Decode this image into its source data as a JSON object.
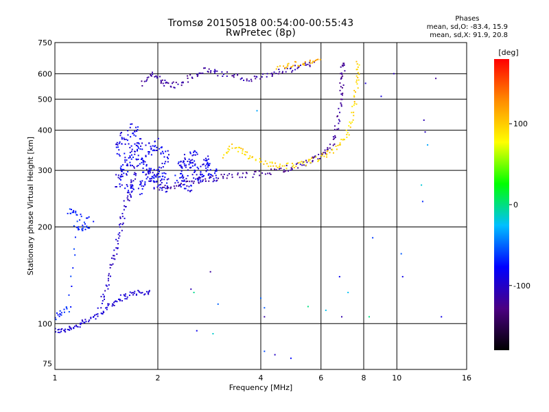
{
  "header": {
    "title_line1": "Tromsø 20150518 00:54:00-00:55:43",
    "title_line2": "RwPretec (8p)"
  },
  "stats": {
    "heading": "Phases",
    "line_o": "mean, sd,O: -83.4, 15.9",
    "line_x": "mean, sd,X:  91.9, 20.8"
  },
  "chart_data": {
    "type": "scatter",
    "xlabel": "Frequency [MHz]",
    "ylabel": "Stationary phase Virtual Height [km]",
    "xscale": "log",
    "yscale": "log",
    "xlim": [
      1,
      16
    ],
    "ylim": [
      72,
      750
    ],
    "x_ticks": [
      1,
      2,
      4,
      6,
      8,
      10,
      16
    ],
    "x_gridlines": [
      2,
      4,
      6,
      8,
      10
    ],
    "y_ticks": [
      75,
      100,
      200,
      300,
      400,
      500,
      600,
      750
    ],
    "y_gridlines": [
      100,
      200,
      300,
      400,
      500,
      600
    ],
    "colorbar": {
      "label": "[deg]",
      "min": -180,
      "max": 180,
      "ticks": [
        100,
        0,
        -100
      ],
      "stops": [
        "#000000",
        "#4b0082",
        "#0000ff",
        "#00bfff",
        "#00ff00",
        "#ffff00",
        "#ff8c00",
        "#ff0000"
      ]
    },
    "series": [
      {
        "tag": "low-o-trace",
        "phase": -95,
        "spread": 10,
        "points": [
          [
            1.0,
            95
          ],
          [
            1.05,
            95
          ],
          [
            1.1,
            97
          ],
          [
            1.15,
            98
          ],
          [
            1.2,
            100
          ],
          [
            1.27,
            103
          ],
          [
            1.35,
            107
          ],
          [
            1.42,
            112
          ],
          [
            1.48,
            116
          ],
          [
            1.55,
            120
          ],
          [
            1.62,
            122
          ],
          [
            1.72,
            125
          ],
          [
            1.82,
            124
          ],
          [
            1.9,
            126
          ]
        ]
      },
      {
        "tag": "low-o-rise",
        "phase": -100,
        "spread": 10,
        "points": [
          [
            1.35,
            112
          ],
          [
            1.4,
            125
          ],
          [
            1.45,
            140
          ],
          [
            1.48,
            160
          ],
          [
            1.52,
            175
          ],
          [
            1.55,
            195
          ],
          [
            1.58,
            215
          ],
          [
            1.62,
            240
          ],
          [
            1.66,
            260
          ],
          [
            1.7,
            285
          ],
          [
            1.72,
            310
          ]
        ]
      },
      {
        "tag": "low-cyan",
        "phase": -70,
        "spread": 12,
        "points": [
          [
            1.0,
            105
          ],
          [
            1.05,
            108
          ],
          [
            1.1,
            112
          ],
          [
            1.15,
            200
          ],
          [
            1.2,
            198
          ],
          [
            1.25,
            200
          ],
          [
            1.1,
            225
          ],
          [
            1.15,
            222
          ],
          [
            1.3,
            210
          ]
        ]
      },
      {
        "tag": "blob-1.5-2.1",
        "phase": -85,
        "spread": 15,
        "points": [
          [
            1.55,
            280
          ],
          [
            1.6,
            300
          ],
          [
            1.65,
            320
          ],
          [
            1.7,
            340
          ],
          [
            1.75,
            360
          ],
          [
            1.8,
            320
          ],
          [
            1.85,
            300
          ],
          [
            1.9,
            290
          ],
          [
            1.95,
            280
          ],
          [
            2.0,
            275
          ],
          [
            2.05,
            300
          ],
          [
            2.1,
            330
          ],
          [
            1.6,
            380
          ],
          [
            1.7,
            400
          ],
          [
            1.55,
            350
          ],
          [
            1.65,
            260
          ],
          [
            1.8,
            265
          ],
          [
            1.9,
            350
          ],
          [
            2.0,
            360
          ],
          [
            2.1,
            270
          ]
        ]
      },
      {
        "tag": "blob-2.3-2.9",
        "phase": -85,
        "spread": 15,
        "points": [
          [
            2.3,
            280
          ],
          [
            2.4,
            300
          ],
          [
            2.5,
            310
          ],
          [
            2.6,
            295
          ],
          [
            2.7,
            285
          ],
          [
            2.8,
            300
          ],
          [
            2.9,
            290
          ],
          [
            2.35,
            320
          ],
          [
            2.55,
            330
          ],
          [
            2.75,
            320
          ],
          [
            2.45,
            270
          ]
        ]
      },
      {
        "tag": "f-o-trace",
        "phase": -120,
        "spread": 10,
        "points": [
          [
            2.0,
            260
          ],
          [
            2.2,
            268
          ],
          [
            2.4,
            272
          ],
          [
            2.6,
            278
          ],
          [
            2.9,
            283
          ],
          [
            3.2,
            288
          ],
          [
            3.5,
            290
          ],
          [
            3.9,
            292
          ],
          [
            4.3,
            297
          ],
          [
            4.7,
            303
          ],
          [
            5.0,
            308
          ],
          [
            5.4,
            316
          ],
          [
            5.8,
            325
          ],
          [
            6.1,
            335
          ],
          [
            6.4,
            355
          ],
          [
            6.6,
            390
          ],
          [
            6.75,
            440
          ],
          [
            6.85,
            500
          ],
          [
            6.9,
            560
          ],
          [
            6.95,
            620
          ],
          [
            6.9,
            650
          ]
        ]
      },
      {
        "tag": "f-x-trace",
        "phase": 95,
        "spread": 14,
        "points": [
          [
            3.1,
            330
          ],
          [
            3.3,
            355
          ],
          [
            3.5,
            345
          ],
          [
            3.7,
            330
          ],
          [
            4.0,
            318
          ],
          [
            4.3,
            313
          ],
          [
            4.6,
            310
          ],
          [
            5.0,
            310
          ],
          [
            5.4,
            316
          ],
          [
            5.8,
            325
          ],
          [
            6.2,
            335
          ],
          [
            6.6,
            350
          ],
          [
            7.0,
            375
          ],
          [
            7.3,
            410
          ],
          [
            7.5,
            470
          ],
          [
            7.6,
            530
          ],
          [
            7.7,
            600
          ],
          [
            7.7,
            660
          ]
        ]
      },
      {
        "tag": "top-band",
        "phase": -115,
        "spread": 12,
        "points": [
          [
            1.8,
            560
          ],
          [
            1.9,
            600
          ],
          [
            2.0,
            580
          ],
          [
            2.1,
            560
          ],
          [
            2.2,
            550
          ],
          [
            2.4,
            570
          ],
          [
            2.6,
            600
          ],
          [
            2.8,
            620
          ],
          [
            3.0,
            600
          ],
          [
            3.3,
            595
          ],
          [
            3.6,
            580
          ],
          [
            3.9,
            580
          ],
          [
            4.3,
            595
          ],
          [
            4.6,
            610
          ],
          [
            5.0,
            620
          ],
          [
            5.4,
            640
          ],
          [
            5.7,
            650
          ]
        ]
      },
      {
        "tag": "top-yellow",
        "phase": 110,
        "spread": 15,
        "points": [
          [
            4.5,
            620
          ],
          [
            4.8,
            640
          ],
          [
            5.2,
            645
          ],
          [
            5.6,
            655
          ],
          [
            6.0,
            660
          ]
        ]
      },
      {
        "tag": "scatter",
        "phase": -60,
        "spread": 60,
        "points": [
          [
            2.5,
            128
          ],
          [
            2.55,
            125
          ],
          [
            3.0,
            115
          ],
          [
            4.0,
            120
          ],
          [
            4.1,
            112
          ],
          [
            4.1,
            105
          ],
          [
            4.4,
            80
          ],
          [
            4.9,
            78
          ],
          [
            5.5,
            113
          ],
          [
            6.2,
            110
          ],
          [
            6.8,
            140
          ],
          [
            6.9,
            105
          ],
          [
            7.2,
            125
          ],
          [
            8.3,
            105
          ],
          [
            8.5,
            185
          ],
          [
            10.3,
            165
          ],
          [
            10.4,
            140
          ],
          [
            11.8,
            270
          ],
          [
            11.9,
            240
          ],
          [
            12.0,
            430
          ],
          [
            12.1,
            395
          ],
          [
            12.3,
            360
          ],
          [
            13.0,
            580
          ],
          [
            13.5,
            105
          ],
          [
            9.8,
            600
          ],
          [
            9.0,
            510
          ],
          [
            8.1,
            560
          ],
          [
            3.9,
            460
          ],
          [
            2.85,
            145
          ],
          [
            2.6,
            95
          ],
          [
            2.9,
            93
          ],
          [
            4.1,
            82
          ]
        ]
      }
    ]
  }
}
